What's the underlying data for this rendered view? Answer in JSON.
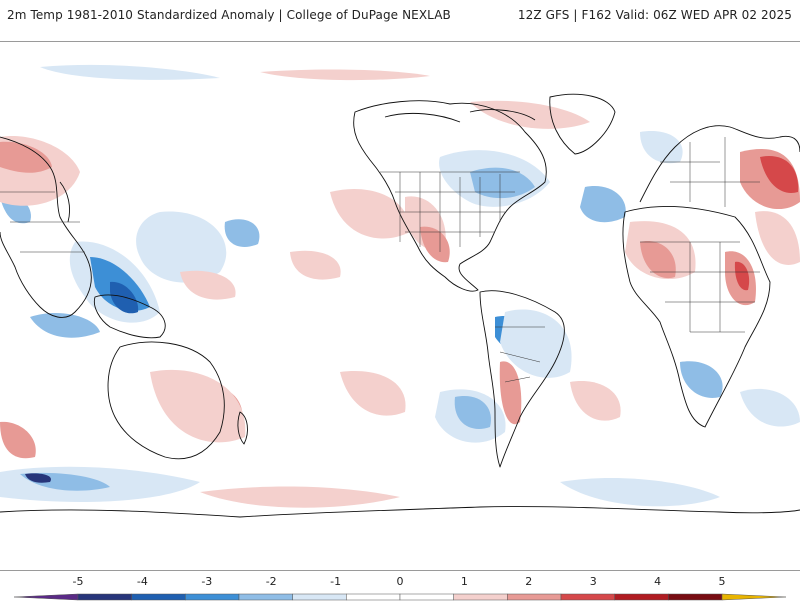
{
  "header": {
    "title_left": "2m Temp 1981-2010 Standardized Anomaly | College of DuPage NEXLAB",
    "title_right": "12Z GFS | F162 Valid: 06Z WED APR 02 2025"
  },
  "colorbar": {
    "ticks": [
      "-5",
      "-4",
      "-3",
      "-2",
      "-1",
      "0",
      "1",
      "2",
      "3",
      "4",
      "5"
    ],
    "colors": [
      "#5a2a86",
      "#27357a",
      "#1f5fb0",
      "#3d8fd6",
      "#8fbde6",
      "#d8e7f5",
      "#ffffff",
      "#ffffff",
      "#f4d0cd",
      "#e79a95",
      "#d5484a",
      "#b01c22",
      "#780c12",
      "#e8b400"
    ]
  },
  "palette": {
    "cold_light": "#d8e7f5",
    "cold_medium": "#8fbde6",
    "cold_strong": "#3d8fd6",
    "cold_deep": "#1f5fb0",
    "warm_light": "#f4d0cd",
    "warm_medium": "#e79a95",
    "warm_strong": "#d5484a",
    "warm_deep": "#b01c22"
  }
}
